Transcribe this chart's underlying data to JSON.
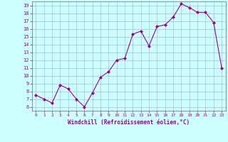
{
  "x": [
    0,
    1,
    2,
    3,
    4,
    5,
    6,
    7,
    8,
    9,
    10,
    11,
    12,
    13,
    14,
    15,
    16,
    17,
    18,
    19,
    20,
    21,
    22,
    23
  ],
  "y": [
    7.5,
    7.0,
    6.5,
    8.8,
    8.3,
    7.0,
    6.0,
    7.8,
    9.8,
    10.5,
    12.0,
    12.2,
    15.3,
    15.7,
    13.8,
    16.3,
    16.5,
    17.5,
    19.2,
    18.7,
    18.1,
    18.1,
    16.8,
    11.0
  ],
  "line_color": "#990099",
  "marker": "D",
  "marker_size": 2,
  "bg_color": "#ccffff",
  "grid_color": "#aaaacc",
  "xlabel": "Windchill (Refroidissement éolien,°C)",
  "xlabel_color": "#990099",
  "tick_color": "#990099",
  "ylim": [
    5.5,
    19.5
  ],
  "xlim": [
    -0.5,
    23.5
  ],
  "yticks": [
    6,
    7,
    8,
    9,
    10,
    11,
    12,
    13,
    14,
    15,
    16,
    17,
    18,
    19
  ],
  "xticks": [
    0,
    1,
    2,
    3,
    4,
    5,
    6,
    7,
    8,
    9,
    10,
    11,
    12,
    13,
    14,
    15,
    16,
    17,
    18,
    19,
    20,
    21,
    22,
    23
  ],
  "spine_color": "#666666"
}
